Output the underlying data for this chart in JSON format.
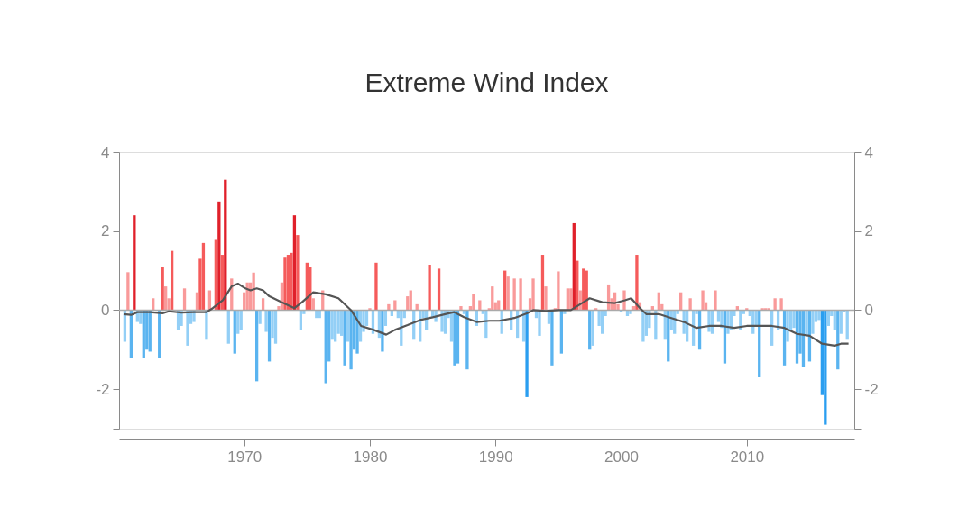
{
  "chart_data": {
    "type": "bar",
    "title": "Extreme Wind Index",
    "xlim": [
      1960.4,
      2018.2
    ],
    "xticks": [
      1970,
      1980,
      1990,
      2000,
      2010
    ],
    "ylim": [
      -3,
      4
    ],
    "yticks": [
      {
        "value": -3,
        "label": null
      },
      -2,
      0,
      2,
      4
    ],
    "y2lim": [
      -3,
      4
    ],
    "y2ticks": [
      {
        "value": -3,
        "label": null
      },
      -2,
      0,
      2,
      4
    ],
    "grid": false,
    "ref_lines": [
      {
        "axis": "y",
        "value": 0,
        "color": "#aaaaaa"
      }
    ],
    "series": [
      {
        "x": [
          1960.5,
          1960.75,
          1961,
          1961.25,
          1961.5,
          1961.75,
          1962,
          1962.25,
          1962.5,
          1962.75,
          1963,
          1963.25,
          1963.5,
          1963.75,
          1964,
          1964.25,
          1964.5,
          1964.75,
          1965,
          1965.25,
          1965.5,
          1965.75,
          1966,
          1966.25,
          1966.5,
          1966.75,
          1967,
          1967.25,
          1967.5,
          1967.75,
          1968,
          1968.25,
          1968.5,
          1968.75,
          1969,
          1969.25,
          1969.5,
          1969.75,
          1970,
          1970.25,
          1970.5,
          1970.75,
          1971,
          1971.25,
          1971.5,
          1971.75,
          1972,
          1972.25,
          1972.5,
          1972.75,
          1973,
          1973.25,
          1973.5,
          1973.75,
          1974,
          1974.25,
          1974.5,
          1974.75,
          1975,
          1975.25,
          1975.5,
          1975.75,
          1976,
          1976.25,
          1976.5,
          1976.75,
          1977,
          1977.25,
          1977.5,
          1977.75,
          1978,
          1978.25,
          1978.5,
          1978.75,
          1979,
          1979.25,
          1979.5,
          1979.75,
          1980,
          1980.25,
          1980.5,
          1980.75,
          1981,
          1981.25,
          1981.5,
          1981.75,
          1982,
          1982.25,
          1982.5,
          1982.75,
          1983,
          1983.25,
          1983.5,
          1983.75,
          1984,
          1984.25,
          1984.5,
          1984.75,
          1985,
          1985.25,
          1985.5,
          1985.75,
          1986,
          1986.25,
          1986.5,
          1986.75,
          1987,
          1987.25,
          1987.5,
          1987.75,
          1988,
          1988.25,
          1988.5,
          1988.75,
          1989,
          1989.25,
          1989.5,
          1989.75,
          1990,
          1990.25,
          1990.5,
          1990.75,
          1991,
          1991.25,
          1991.5,
          1991.75,
          1992,
          1992.25,
          1992.5,
          1992.75,
          1993,
          1993.25,
          1993.5,
          1993.75,
          1994,
          1994.25,
          1994.5,
          1994.75,
          1995,
          1995.25,
          1995.5,
          1995.75,
          1996,
          1996.25,
          1996.5,
          1996.75,
          1997,
          1997.25,
          1997.5,
          1997.75,
          1998,
          1998.25,
          1998.5,
          1998.75,
          1999,
          1999.25,
          1999.5,
          1999.75,
          2000,
          2000.25,
          2000.5,
          2000.75,
          2001,
          2001.25,
          2001.5,
          2001.75,
          2002,
          2002.25,
          2002.5,
          2002.75,
          2003,
          2003.25,
          2003.5,
          2003.75,
          2004,
          2004.25,
          2004.5,
          2004.75,
          2005,
          2005.25,
          2005.5,
          2005.75,
          2006,
          2006.25,
          2006.5,
          2006.75,
          2007,
          2007.25,
          2007.5,
          2007.75,
          2008,
          2008.25,
          2008.5,
          2008.75,
          2009,
          2009.25,
          2009.5,
          2009.75,
          2010,
          2010.25,
          2010.5,
          2010.75,
          2011,
          2011.25,
          2011.5,
          2011.75,
          2012,
          2012.25,
          2012.5,
          2012.75,
          2013,
          2013.25,
          2013.5,
          2013.75,
          2014,
          2014.25,
          2014.5,
          2014.75,
          2015,
          2015.25,
          2015.5,
          2015.75,
          2016,
          2016.25,
          2016.5,
          2016.75,
          2017,
          2017.25,
          2017.5,
          2017.75,
          2018
        ],
        "values": [
          -0.8,
          0.96,
          -1.2,
          2.4,
          -0.3,
          -0.35,
          -1.2,
          -1.0,
          -1.05,
          0.3,
          null,
          -1.2,
          1.1,
          0.6,
          0.3,
          1.5,
          null,
          -0.5,
          -0.4,
          0.55,
          -0.9,
          -0.35,
          -0.3,
          0.45,
          1.3,
          1.7,
          -0.75,
          0.5,
          null,
          1.8,
          2.75,
          1.4,
          3.3,
          -0.85,
          0.8,
          -1.1,
          -0.6,
          -0.5,
          0.45,
          0.7,
          0.7,
          0.95,
          -1.8,
          -0.35,
          0.3,
          -0.55,
          -1.3,
          -0.7,
          -0.85,
          0.1,
          0.7,
          1.35,
          1.4,
          1.45,
          2.4,
          1.9,
          -0.5,
          -0.1,
          1.2,
          1.1,
          0.3,
          -0.2,
          -0.2,
          0.5,
          -1.85,
          -1.3,
          -0.75,
          -0.8,
          -0.6,
          -0.65,
          -1.4,
          -0.8,
          -1.5,
          -1.0,
          -1.1,
          -0.8,
          -0.55,
          -0.4,
          0.05,
          -0.6,
          1.2,
          -0.7,
          -1.05,
          -0.4,
          0.15,
          -0.15,
          0.25,
          -0.2,
          -0.9,
          -0.2,
          0.35,
          0.5,
          -0.75,
          0.15,
          -0.8,
          -0.2,
          -0.5,
          1.15,
          -0.2,
          -0.3,
          1.05,
          -0.55,
          -0.6,
          -0.2,
          -0.8,
          -1.4,
          -1.35,
          0.1,
          -0.1,
          -1.5,
          0.1,
          0.4,
          -0.4,
          0.25,
          -0.1,
          -0.7,
          0.05,
          0.6,
          0.2,
          0.25,
          -0.6,
          1.0,
          0.85,
          -0.5,
          0.8,
          -0.7,
          0.8,
          -0.8,
          -2.2,
          0.3,
          0.8,
          -0.2,
          -0.65,
          1.4,
          0.6,
          -0.35,
          -1.4,
          0.05,
          0.98,
          -1.1,
          -0.1,
          0.55,
          0.55,
          2.2,
          1.25,
          0.5,
          1.05,
          1.0,
          -1.0,
          -0.9,
          0.05,
          -0.4,
          -0.6,
          -0.15,
          0.65,
          0.3,
          0.45,
          0.15,
          -0.05,
          0.5,
          -0.15,
          -0.1,
          0.1,
          1.4,
          0.2,
          -0.8,
          -0.65,
          -0.45,
          0.1,
          -0.75,
          0.45,
          0.15,
          -0.75,
          -1.3,
          -0.5,
          -0.6,
          -0.1,
          0.45,
          -0.6,
          -0.8,
          0.3,
          -0.9,
          -0.1,
          -1.0,
          0.5,
          0.2,
          -0.55,
          -0.6,
          0.5,
          -0.3,
          -0.45,
          -1.35,
          -0.6,
          -0.5,
          -0.15,
          0.1,
          -0.5,
          -0.1,
          0.05,
          -0.15,
          -0.6,
          -0.4,
          -1.7,
          0.05,
          0.05,
          0.05,
          -0.9,
          0.3,
          -0.5,
          0.3,
          -1.4,
          -0.8,
          -0.5,
          -0.45,
          -1.35,
          -1.1,
          -1.45,
          -0.65,
          -1.3,
          -0.6,
          -0.3,
          -0.25,
          -2.15,
          -2.9,
          -0.4,
          -0.15,
          -0.5,
          -1.5,
          -0.6,
          -0.05,
          -0.75
        ],
        "colors": [
          "#93cff6",
          "#f99a9a",
          "#5ab4f0",
          "#e0202a",
          "#93cff6",
          "#93cff6",
          "#5ab4f0",
          "#5ab4f0",
          "#5ab4f0",
          "#f99a9a",
          "#93cff6",
          "#5ab4f0",
          "#f55b5b",
          "#f99a9a",
          "#f99a9a",
          "#f55b5b",
          "#93cff6",
          "#93cff6",
          "#93cff6",
          "#f99a9a",
          "#93cff6",
          "#93cff6",
          "#93cff6",
          "#f99a9a",
          "#f55b5b",
          "#f55b5b",
          "#93cff6",
          "#f99a9a",
          "#f99a9a",
          "#f55b5b",
          "#e0202a",
          "#f55b5b",
          "#e0202a",
          "#93cff6",
          "#f99a9a",
          "#5ab4f0",
          "#93cff6",
          "#93cff6",
          "#f99a9a",
          "#f99a9a",
          "#f99a9a",
          "#f99a9a",
          "#5ab4f0",
          "#93cff6",
          "#f99a9a",
          "#93cff6",
          "#5ab4f0",
          "#93cff6",
          "#93cff6",
          "#f99a9a",
          "#f99a9a",
          "#f55b5b",
          "#f55b5b",
          "#f55b5b",
          "#e0202a",
          "#f55b5b",
          "#93cff6",
          "#93cff6",
          "#f55b5b",
          "#f55b5b",
          "#f99a9a",
          "#93cff6",
          "#93cff6",
          "#f99a9a",
          "#5ab4f0",
          "#5ab4f0",
          "#93cff6",
          "#93cff6",
          "#93cff6",
          "#93cff6",
          "#5ab4f0",
          "#93cff6",
          "#5ab4f0",
          "#5ab4f0",
          "#5ab4f0",
          "#93cff6",
          "#93cff6",
          "#93cff6",
          "#f99a9a",
          "#93cff6",
          "#f55b5b",
          "#93cff6",
          "#5ab4f0",
          "#93cff6",
          "#f99a9a",
          "#93cff6",
          "#f99a9a",
          "#93cff6",
          "#93cff6",
          "#93cff6",
          "#f99a9a",
          "#f99a9a",
          "#93cff6",
          "#f99a9a",
          "#93cff6",
          "#93cff6",
          "#93cff6",
          "#f55b5b",
          "#93cff6",
          "#93cff6",
          "#f55b5b",
          "#93cff6",
          "#93cff6",
          "#93cff6",
          "#93cff6",
          "#5ab4f0",
          "#5ab4f0",
          "#f99a9a",
          "#93cff6",
          "#5ab4f0",
          "#f99a9a",
          "#f99a9a",
          "#93cff6",
          "#f99a9a",
          "#93cff6",
          "#93cff6",
          "#f99a9a",
          "#f99a9a",
          "#f99a9a",
          "#f99a9a",
          "#93cff6",
          "#f55b5b",
          "#f99a9a",
          "#93cff6",
          "#f99a9a",
          "#93cff6",
          "#f99a9a",
          "#93cff6",
          "#2a9ef0",
          "#f99a9a",
          "#f99a9a",
          "#93cff6",
          "#93cff6",
          "#f55b5b",
          "#f99a9a",
          "#93cff6",
          "#5ab4f0",
          "#f99a9a",
          "#f99a9a",
          "#5ab4f0",
          "#93cff6",
          "#f99a9a",
          "#f99a9a",
          "#e0202a",
          "#f55b5b",
          "#f99a9a",
          "#f55b5b",
          "#f55b5b",
          "#5ab4f0",
          "#93cff6",
          "#f99a9a",
          "#93cff6",
          "#93cff6",
          "#93cff6",
          "#f99a9a",
          "#f99a9a",
          "#f99a9a",
          "#f99a9a",
          "#93cff6",
          "#f99a9a",
          "#93cff6",
          "#93cff6",
          "#f99a9a",
          "#f55b5b",
          "#f99a9a",
          "#93cff6",
          "#93cff6",
          "#93cff6",
          "#f99a9a",
          "#93cff6",
          "#f99a9a",
          "#f99a9a",
          "#93cff6",
          "#5ab4f0",
          "#93cff6",
          "#93cff6",
          "#93cff6",
          "#f99a9a",
          "#93cff6",
          "#93cff6",
          "#f99a9a",
          "#93cff6",
          "#93cff6",
          "#5ab4f0",
          "#f99a9a",
          "#f99a9a",
          "#93cff6",
          "#93cff6",
          "#f99a9a",
          "#93cff6",
          "#93cff6",
          "#5ab4f0",
          "#93cff6",
          "#93cff6",
          "#93cff6",
          "#f99a9a",
          "#93cff6",
          "#93cff6",
          "#f99a9a",
          "#93cff6",
          "#93cff6",
          "#93cff6",
          "#5ab4f0",
          "#f99a9a",
          "#f99a9a",
          "#f99a9a",
          "#93cff6",
          "#f99a9a",
          "#93cff6",
          "#f99a9a",
          "#5ab4f0",
          "#93cff6",
          "#93cff6",
          "#93cff6",
          "#5ab4f0",
          "#5ab4f0",
          "#5ab4f0",
          "#93cff6",
          "#5ab4f0",
          "#93cff6",
          "#93cff6",
          "#93cff6",
          "#2a9ef0",
          "#2a9ef0",
          "#93cff6",
          "#93cff6",
          "#93cff6",
          "#5ab4f0",
          "#93cff6",
          "#93cff6",
          "#93cff6"
        ]
      },
      {
        "type": "line",
        "color": "#555555",
        "x": [
          1960.4,
          1961,
          1961.5,
          1962.5,
          1963.5,
          1964,
          1965,
          1966,
          1967,
          1967.5,
          1968.3,
          1969,
          1969.5,
          1970.1,
          1970.5,
          1971,
          1971.5,
          1972,
          1973,
          1974,
          1974.6,
          1975.5,
          1976.5,
          1977.5,
          1978.5,
          1979.3,
          1980.3,
          1981.3,
          1982,
          1983,
          1984,
          1985,
          1986,
          1986.7,
          1987.5,
          1988.5,
          1989.5,
          1990.3,
          1991.5,
          1992.5,
          1993,
          1994,
          1995,
          1996,
          1997,
          1997.5,
          1998.5,
          1999.5,
          2000.3,
          2000.8,
          2001.5,
          2002,
          2003,
          2004,
          2005,
          2006,
          2007,
          2008,
          2009,
          2010,
          2011,
          2012,
          2013,
          2014,
          2015,
          2016,
          2017,
          2017.5,
          2018.1
        ],
        "values": [
          -0.1,
          -0.12,
          -0.05,
          -0.05,
          -0.08,
          -0.03,
          -0.06,
          -0.05,
          -0.05,
          0.05,
          0.25,
          0.6,
          0.67,
          0.55,
          0.5,
          0.55,
          0.5,
          0.35,
          0.2,
          0.05,
          0.2,
          0.45,
          0.4,
          0.3,
          0.0,
          -0.4,
          -0.5,
          -0.62,
          -0.5,
          -0.38,
          -0.25,
          -0.18,
          -0.1,
          -0.05,
          -0.18,
          -0.3,
          -0.27,
          -0.27,
          -0.2,
          -0.08,
          0.0,
          -0.02,
          0.0,
          0.0,
          0.2,
          0.3,
          0.2,
          0.18,
          0.25,
          0.3,
          0.05,
          -0.1,
          -0.1,
          -0.2,
          -0.3,
          -0.45,
          -0.4,
          -0.4,
          -0.45,
          -0.4,
          -0.4,
          -0.4,
          -0.45,
          -0.6,
          -0.65,
          -0.85,
          -0.9,
          -0.85,
          -0.85
        ]
      }
    ]
  }
}
